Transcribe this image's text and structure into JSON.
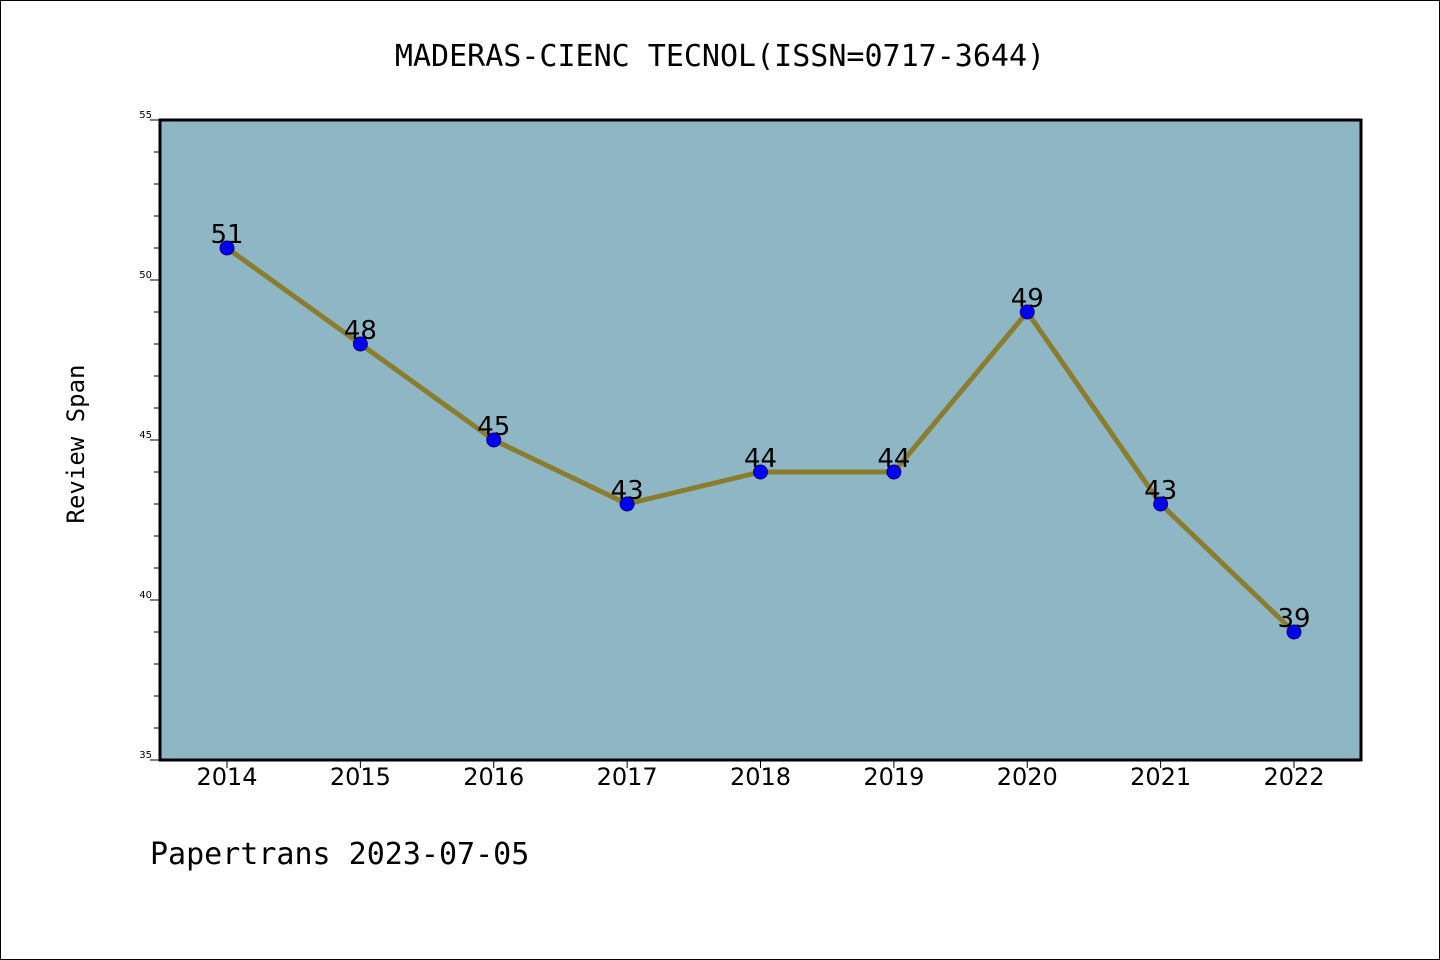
{
  "chart_data": {
    "type": "line",
    "title": "MADERAS-CIENC TECNOL(ISSN=0717-3644)",
    "xlabel": "",
    "ylabel": "Review Span",
    "categories": [
      "2014",
      "2015",
      "2016",
      "2017",
      "2018",
      "2019",
      "2020",
      "2021",
      "2022"
    ],
    "series": [
      {
        "values": [
          51,
          48,
          45,
          43,
          44,
          44,
          49,
          43,
          39
        ]
      }
    ],
    "ylim": [
      35,
      55
    ],
    "yticks": [
      "35",
      "40",
      "45",
      "50",
      "55"
    ],
    "ytick_values": [
      35,
      40,
      45,
      50,
      55
    ],
    "data_labels": [
      "51",
      "48",
      "45",
      "43",
      "44",
      "44",
      "49",
      "43",
      "39"
    ],
    "grid": false,
    "legend": "none",
    "colors": {
      "plot_background": "#8fb6c5",
      "line": "#8a7d2e",
      "marker_fill": "#0000ee",
      "marker_edge": "#00008b"
    }
  },
  "footer": "Papertrans 2023-07-05"
}
